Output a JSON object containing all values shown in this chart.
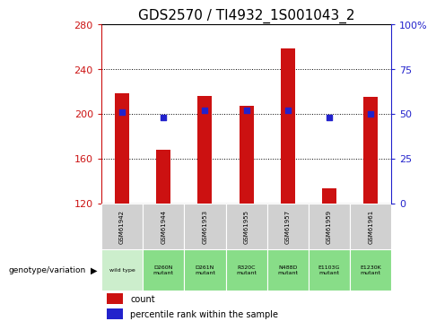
{
  "title": "GDS2570 / TI4932_1S001043_2",
  "samples": [
    "GSM61942",
    "GSM61944",
    "GSM61953",
    "GSM61955",
    "GSM61957",
    "GSM61959",
    "GSM61961"
  ],
  "genotypes": [
    "wild type",
    "D260N\nmutant",
    "D261N\nmutant",
    "R320C\nmutant",
    "N488D\nmutant",
    "E1103G\nmutant",
    "E1230K\nmutant"
  ],
  "counts": [
    218,
    168,
    216,
    207,
    258,
    133,
    215
  ],
  "percentile_ranks": [
    51,
    48,
    52,
    52,
    52,
    48,
    50
  ],
  "ylim_left": [
    120,
    280
  ],
  "ylim_right": [
    0,
    100
  ],
  "yticks_left": [
    120,
    160,
    200,
    240,
    280
  ],
  "yticks_right": [
    0,
    25,
    50,
    75,
    100
  ],
  "bar_color": "#cc1111",
  "dot_color": "#2222cc",
  "title_fontsize": 11,
  "axis_color_left": "#cc1111",
  "axis_color_right": "#2222cc",
  "grid_color": "black",
  "bar_width": 0.35,
  "background_table_gray": "#d0d0d0",
  "background_table_green_wt": "#cceecc",
  "background_table_green_mut": "#88dd88",
  "legend_count_color": "#cc1111",
  "legend_pct_color": "#2222cc"
}
